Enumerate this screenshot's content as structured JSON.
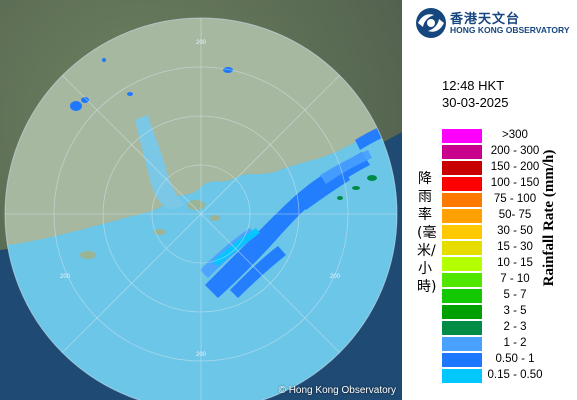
{
  "map": {
    "range_labels": [
      "200",
      "200",
      "200",
      "200"
    ],
    "copyright": "© Hong Kong Observatory"
  },
  "logo": {
    "name_cn": "香港天文台",
    "name_en": "HONG KONG OBSERVATORY"
  },
  "observation": {
    "time": "12:48 HKT",
    "date": "30-03-2025"
  },
  "legend": {
    "title_cn": "降雨率(毫米/小時)",
    "title_en": "Rainfall Rate (mm/h)",
    "items": [
      {
        "label": ">300",
        "color": "#ff00ff"
      },
      {
        "label": "200 - 300",
        "color": "#c8008c"
      },
      {
        "label": "150 - 200",
        "color": "#c80000"
      },
      {
        "label": "100 - 150",
        "color": "#ff0000"
      },
      {
        "label": "75 - 100",
        "color": "#ff7800"
      },
      {
        "label": "50- 75",
        "color": "#ffa000"
      },
      {
        "label": "30 - 50",
        "color": "#ffc800"
      },
      {
        "label": "15 - 30",
        "color": "#e6dc00"
      },
      {
        "label": "10 - 15",
        "color": "#b4ff00"
      },
      {
        "label": "7 - 10",
        "color": "#50e600"
      },
      {
        "label": "5 - 7",
        "color": "#14c800"
      },
      {
        "label": "3 - 5",
        "color": "#00a000"
      },
      {
        "label": "2 - 3",
        "color": "#008c46"
      },
      {
        "label": "1 - 2",
        "color": "#4aa0ff"
      },
      {
        "label": "0.50 - 1",
        "color": "#1e78ff"
      },
      {
        "label": "0.15 - 0.50",
        "color": "#00c8ff"
      }
    ]
  }
}
